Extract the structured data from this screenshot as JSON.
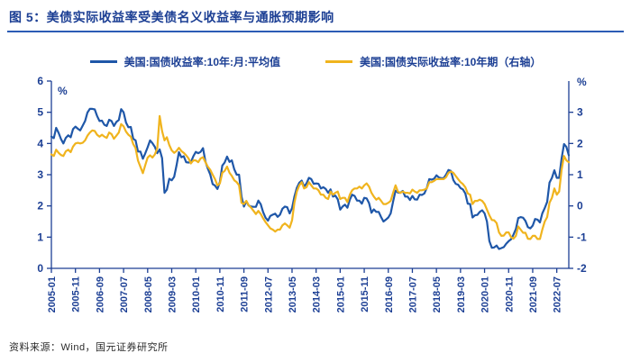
{
  "title": "图 5：美债实际收益率受美债名义收益率与通胀预期影响",
  "footer": {
    "source": "资料来源：Wind，国元证券研究所"
  },
  "colors": {
    "navy_text": "#1C3F94",
    "divider_blue": "#2B5CB5",
    "axis": "#1C3F94",
    "line_blue": "#1F57A8",
    "line_yellow": "#F0B41E"
  },
  "legend": [
    {
      "label": "美国:国债收益率:10年:月:平均值",
      "color": "#1F57A8"
    },
    {
      "label": "美国:国债实际收益率:10年期（右轴）",
      "color": "#F0B41E"
    }
  ],
  "chart_data": {
    "type": "line",
    "x_start": "2005-01",
    "x_end": "2022-12",
    "x_frequency": "monthly",
    "x_tick_every": 10,
    "x_tick_labels": [
      "2005-01",
      "2005-11",
      "2006-09",
      "2007-07",
      "2008-05",
      "2009-03",
      "2010-01",
      "2010-11",
      "2011-09",
      "2012-07",
      "2013-05",
      "2014-03",
      "2015-01",
      "2015-11",
      "2016-09",
      "2017-07",
      "2018-05",
      "2019-03",
      "2020-01",
      "2020-11",
      "2021-09",
      "2022-07"
    ],
    "left_axis": {
      "label": "%",
      "min": 0,
      "max": 6,
      "ticks": [
        6,
        5,
        4,
        3,
        2,
        1,
        0
      ]
    },
    "right_axis": {
      "label": "%",
      "min": -2,
      "max": 4,
      "ticks": [
        3,
        2,
        1,
        0,
        -1,
        -2
      ]
    },
    "grid": false,
    "legend_position": "top",
    "series": [
      {
        "name": "美国:国债收益率:10年:月:平均值",
        "axis": "left",
        "color": "#1F57A8",
        "values": [
          4.22,
          4.17,
          4.5,
          4.34,
          4.14,
          4.0,
          4.18,
          4.26,
          4.2,
          4.46,
          4.54,
          4.47,
          4.42,
          4.57,
          4.72,
          4.99,
          5.11,
          5.11,
          5.09,
          4.88,
          4.72,
          4.73,
          4.6,
          4.56,
          4.76,
          4.72,
          4.56,
          4.69,
          4.75,
          5.1,
          5.0,
          4.67,
          4.52,
          4.53,
          4.15,
          4.1,
          3.74,
          3.74,
          3.51,
          3.68,
          3.88,
          4.1,
          4.01,
          3.89,
          3.69,
          3.81,
          3.53,
          2.42,
          2.52,
          2.87,
          2.82,
          2.93,
          3.29,
          3.72,
          3.56,
          3.59,
          3.4,
          3.39,
          3.4,
          3.59,
          3.73,
          3.69,
          3.73,
          3.85,
          3.42,
          3.2,
          3.01,
          2.7,
          2.65,
          2.54,
          2.76,
          3.29,
          3.39,
          3.58,
          3.41,
          3.46,
          3.17,
          3.0,
          3.0,
          2.3,
          1.98,
          2.15,
          2.01,
          1.98,
          1.97,
          1.97,
          2.17,
          2.05,
          1.8,
          1.62,
          1.53,
          1.68,
          1.72,
          1.75,
          1.65,
          1.72,
          1.91,
          1.98,
          1.96,
          1.76,
          1.93,
          2.3,
          2.58,
          2.74,
          2.81,
          2.62,
          2.72,
          2.9,
          2.86,
          2.71,
          2.72,
          2.71,
          2.56,
          2.6,
          2.54,
          2.42,
          2.53,
          2.3,
          2.33,
          2.21,
          1.88,
          1.98,
          2.04,
          1.94,
          2.2,
          2.36,
          2.32,
          2.17,
          2.17,
          2.07,
          2.26,
          2.24,
          2.09,
          1.78,
          1.89,
          1.81,
          1.81,
          1.64,
          1.5,
          1.56,
          1.63,
          1.76,
          2.14,
          2.49,
          2.43,
          2.42,
          2.48,
          2.3,
          2.3,
          2.19,
          2.32,
          2.21,
          2.2,
          2.36,
          2.35,
          2.4,
          2.58,
          2.86,
          2.84,
          2.87,
          2.98,
          2.91,
          2.89,
          2.89,
          3.0,
          3.15,
          3.12,
          2.83,
          2.71,
          2.68,
          2.57,
          2.53,
          2.4,
          2.07,
          2.06,
          1.63,
          1.7,
          1.71,
          1.81,
          1.86,
          1.76,
          1.5,
          0.87,
          0.66,
          0.67,
          0.73,
          0.62,
          0.65,
          0.68,
          0.79,
          0.87,
          0.93,
          1.08,
          1.26,
          1.61,
          1.64,
          1.62,
          1.52,
          1.32,
          1.28,
          1.37,
          1.58,
          1.56,
          1.47,
          1.76,
          1.93,
          2.13,
          2.75,
          2.9,
          3.14,
          2.9,
          2.9,
          3.52,
          3.98,
          3.89,
          3.62
        ]
      },
      {
        "name": "美国:国债实际收益率:10年期（右轴）",
        "axis": "right",
        "color": "#F0B41E",
        "values": [
          1.65,
          1.6,
          1.8,
          1.7,
          1.63,
          1.6,
          1.75,
          1.8,
          1.72,
          1.9,
          2.0,
          2.02,
          2.0,
          2.02,
          2.1,
          2.25,
          2.35,
          2.42,
          2.4,
          2.28,
          2.22,
          2.28,
          2.22,
          2.18,
          2.35,
          2.3,
          2.15,
          2.25,
          2.35,
          2.62,
          2.55,
          2.38,
          2.28,
          2.22,
          1.98,
          1.85,
          1.45,
          1.25,
          1.05,
          1.3,
          1.55,
          1.62,
          1.55,
          1.65,
          1.85,
          2.88,
          2.4,
          2.1,
          2.2,
          1.95,
          1.78,
          1.7,
          1.76,
          1.86,
          1.76,
          1.7,
          1.62,
          1.52,
          1.36,
          1.46,
          1.46,
          1.4,
          1.52,
          1.56,
          1.4,
          1.26,
          1.16,
          1.0,
          0.86,
          0.66,
          0.72,
          1.06,
          1.12,
          1.26,
          1.06,
          0.96,
          0.82,
          0.76,
          0.66,
          0.1,
          0.06,
          0.16,
          0.02,
          -0.06,
          -0.16,
          -0.26,
          -0.16,
          -0.26,
          -0.4,
          -0.52,
          -0.62,
          -0.72,
          -0.76,
          -0.82,
          -0.76,
          -0.76,
          -0.62,
          -0.56,
          -0.62,
          -0.7,
          -0.46,
          0.1,
          0.46,
          0.66,
          0.76,
          0.56,
          0.6,
          0.76,
          0.66,
          0.56,
          0.56,
          0.5,
          0.36,
          0.36,
          0.26,
          0.22,
          0.46,
          0.36,
          0.42,
          0.46,
          0.22,
          0.26,
          0.26,
          0.12,
          0.36,
          0.5,
          0.56,
          0.56,
          0.62,
          0.56,
          0.66,
          0.72,
          0.62,
          0.42,
          0.3,
          0.2,
          0.26,
          0.16,
          0.06,
          0.06,
          0.1,
          0.16,
          0.42,
          0.66,
          0.46,
          0.42,
          0.46,
          0.42,
          0.42,
          0.4,
          0.52,
          0.46,
          0.42,
          0.5,
          0.5,
          0.52,
          0.56,
          0.76,
          0.76,
          0.8,
          0.86,
          0.86,
          0.86,
          0.86,
          0.92,
          1.06,
          1.1,
          1.06,
          0.96,
          0.86,
          0.76,
          0.7,
          0.6,
          0.4,
          0.36,
          0.06,
          0.16,
          0.16,
          0.2,
          0.16,
          0.06,
          -0.12,
          -0.3,
          -0.45,
          -0.46,
          -0.55,
          -0.85,
          -0.96,
          -0.95,
          -0.85,
          -0.85,
          -1.0,
          -1.05,
          -0.96,
          -0.66,
          -0.76,
          -0.86,
          -0.86,
          -1.05,
          -1.06,
          -0.96,
          -0.96,
          -1.06,
          -1.06,
          -0.76,
          -0.5,
          -0.36,
          0.1,
          0.26,
          0.56,
          0.36,
          0.46,
          1.16,
          1.6,
          1.46,
          1.4
        ]
      }
    ]
  }
}
